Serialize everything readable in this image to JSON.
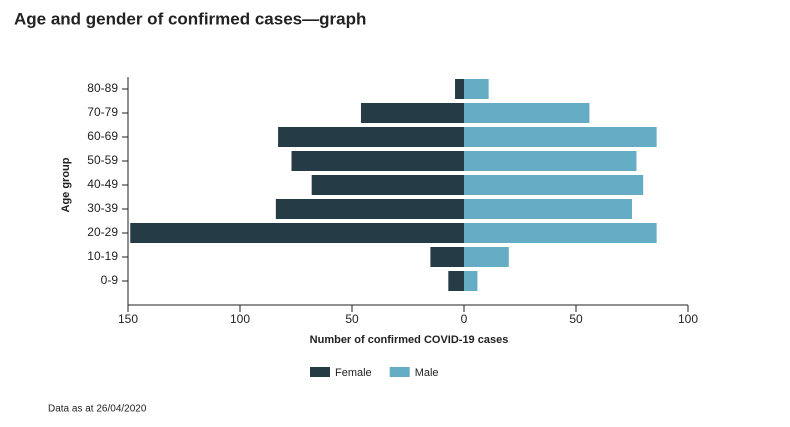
{
  "chart_data": {
    "type": "pyramid",
    "title": "Age and gender of confirmed cases—graph",
    "x_label": "Number of confirmed COVID-19 cases",
    "y_label": "Age group",
    "note": "Data as at 26/04/2020",
    "categories": [
      "80-89",
      "70-79",
      "60-69",
      "50-59",
      "40-49",
      "30-39",
      "20-29",
      "10-19",
      "0-9"
    ],
    "series": [
      {
        "name": "Female",
        "color": "#253b45",
        "values": [
          4,
          46,
          83,
          77,
          68,
          84,
          149,
          15,
          7
        ]
      },
      {
        "name": "Male",
        "color": "#65adc4",
        "values": [
          11,
          56,
          86,
          77,
          80,
          75,
          86,
          20,
          6
        ]
      }
    ],
    "xlim": [
      -150,
      100
    ],
    "xticks": [
      {
        "value": -150,
        "label": "150"
      },
      {
        "value": -100,
        "label": "100"
      },
      {
        "value": -50,
        "label": "50"
      },
      0,
      50,
      100
    ],
    "legend": "bottom"
  }
}
